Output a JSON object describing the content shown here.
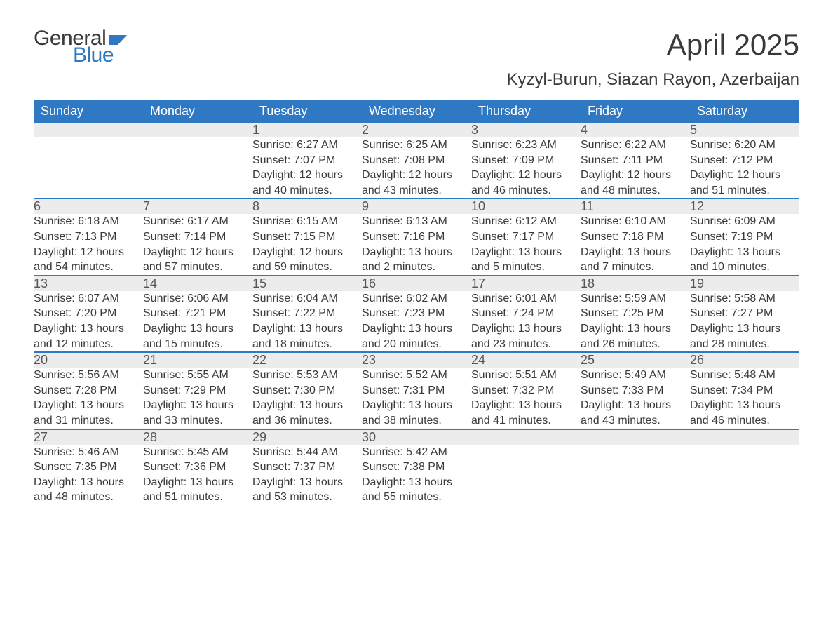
{
  "brand": {
    "word1": "General",
    "word2": "Blue",
    "flag_color": "#2f78c3"
  },
  "title": "April 2025",
  "location": "Kyzyl-Burun, Siazan Rayon, Azerbaijan",
  "colors": {
    "header_bg": "#2f78c3",
    "header_text": "#ffffff",
    "daynum_bg": "#ececec",
    "border_top": "#2f78c3",
    "body_text": "#3a3a3a"
  },
  "typography": {
    "title_fontsize": 42,
    "location_fontsize": 24,
    "header_fontsize": 18,
    "daynum_fontsize": 18,
    "detail_fontsize": 16
  },
  "day_headers": [
    "Sunday",
    "Monday",
    "Tuesday",
    "Wednesday",
    "Thursday",
    "Friday",
    "Saturday"
  ],
  "weeks": [
    [
      null,
      null,
      {
        "n": "1",
        "sr": "6:27 AM",
        "ss": "7:07 PM",
        "dl": "12 hours and 40 minutes."
      },
      {
        "n": "2",
        "sr": "6:25 AM",
        "ss": "7:08 PM",
        "dl": "12 hours and 43 minutes."
      },
      {
        "n": "3",
        "sr": "6:23 AM",
        "ss": "7:09 PM",
        "dl": "12 hours and 46 minutes."
      },
      {
        "n": "4",
        "sr": "6:22 AM",
        "ss": "7:11 PM",
        "dl": "12 hours and 48 minutes."
      },
      {
        "n": "5",
        "sr": "6:20 AM",
        "ss": "7:12 PM",
        "dl": "12 hours and 51 minutes."
      }
    ],
    [
      {
        "n": "6",
        "sr": "6:18 AM",
        "ss": "7:13 PM",
        "dl": "12 hours and 54 minutes."
      },
      {
        "n": "7",
        "sr": "6:17 AM",
        "ss": "7:14 PM",
        "dl": "12 hours and 57 minutes."
      },
      {
        "n": "8",
        "sr": "6:15 AM",
        "ss": "7:15 PM",
        "dl": "12 hours and 59 minutes."
      },
      {
        "n": "9",
        "sr": "6:13 AM",
        "ss": "7:16 PM",
        "dl": "13 hours and 2 minutes."
      },
      {
        "n": "10",
        "sr": "6:12 AM",
        "ss": "7:17 PM",
        "dl": "13 hours and 5 minutes."
      },
      {
        "n": "11",
        "sr": "6:10 AM",
        "ss": "7:18 PM",
        "dl": "13 hours and 7 minutes."
      },
      {
        "n": "12",
        "sr": "6:09 AM",
        "ss": "7:19 PM",
        "dl": "13 hours and 10 minutes."
      }
    ],
    [
      {
        "n": "13",
        "sr": "6:07 AM",
        "ss": "7:20 PM",
        "dl": "13 hours and 12 minutes."
      },
      {
        "n": "14",
        "sr": "6:06 AM",
        "ss": "7:21 PM",
        "dl": "13 hours and 15 minutes."
      },
      {
        "n": "15",
        "sr": "6:04 AM",
        "ss": "7:22 PM",
        "dl": "13 hours and 18 minutes."
      },
      {
        "n": "16",
        "sr": "6:02 AM",
        "ss": "7:23 PM",
        "dl": "13 hours and 20 minutes."
      },
      {
        "n": "17",
        "sr": "6:01 AM",
        "ss": "7:24 PM",
        "dl": "13 hours and 23 minutes."
      },
      {
        "n": "18",
        "sr": "5:59 AM",
        "ss": "7:25 PM",
        "dl": "13 hours and 26 minutes."
      },
      {
        "n": "19",
        "sr": "5:58 AM",
        "ss": "7:27 PM",
        "dl": "13 hours and 28 minutes."
      }
    ],
    [
      {
        "n": "20",
        "sr": "5:56 AM",
        "ss": "7:28 PM",
        "dl": "13 hours and 31 minutes."
      },
      {
        "n": "21",
        "sr": "5:55 AM",
        "ss": "7:29 PM",
        "dl": "13 hours and 33 minutes."
      },
      {
        "n": "22",
        "sr": "5:53 AM",
        "ss": "7:30 PM",
        "dl": "13 hours and 36 minutes."
      },
      {
        "n": "23",
        "sr": "5:52 AM",
        "ss": "7:31 PM",
        "dl": "13 hours and 38 minutes."
      },
      {
        "n": "24",
        "sr": "5:51 AM",
        "ss": "7:32 PM",
        "dl": "13 hours and 41 minutes."
      },
      {
        "n": "25",
        "sr": "5:49 AM",
        "ss": "7:33 PM",
        "dl": "13 hours and 43 minutes."
      },
      {
        "n": "26",
        "sr": "5:48 AM",
        "ss": "7:34 PM",
        "dl": "13 hours and 46 minutes."
      }
    ],
    [
      {
        "n": "27",
        "sr": "5:46 AM",
        "ss": "7:35 PM",
        "dl": "13 hours and 48 minutes."
      },
      {
        "n": "28",
        "sr": "5:45 AM",
        "ss": "7:36 PM",
        "dl": "13 hours and 51 minutes."
      },
      {
        "n": "29",
        "sr": "5:44 AM",
        "ss": "7:37 PM",
        "dl": "13 hours and 53 minutes."
      },
      {
        "n": "30",
        "sr": "5:42 AM",
        "ss": "7:38 PM",
        "dl": "13 hours and 55 minutes."
      },
      null,
      null,
      null
    ]
  ],
  "labels": {
    "sunrise": "Sunrise: ",
    "sunset": "Sunset: ",
    "daylight": "Daylight: "
  }
}
